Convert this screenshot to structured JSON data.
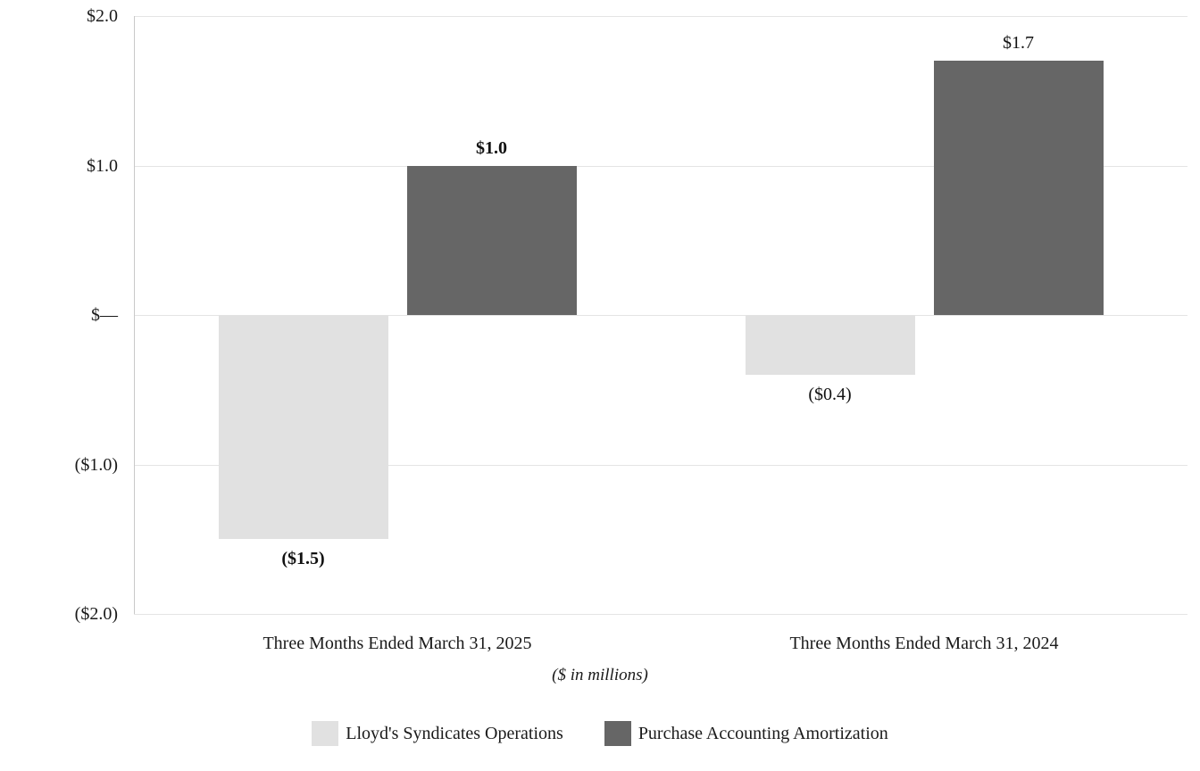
{
  "chart_data": {
    "type": "bar",
    "categories": [
      "Three Months Ended March 31, 2025",
      "Three Months Ended March 31, 2024"
    ],
    "series": [
      {
        "name": "Lloyd's Syndicates Operations",
        "color": "#e1e1e1",
        "values": [
          -1.5,
          -0.4
        ],
        "labels": [
          "($1.5)",
          "($0.4)"
        ]
      },
      {
        "name": "Purchase Accounting Amortization",
        "color": "#666666",
        "values": [
          1.0,
          1.7
        ],
        "labels": [
          "$1.0",
          "$1.7"
        ]
      }
    ],
    "value_label_bold_by_category": [
      true,
      false
    ],
    "y_ticks": [
      {
        "value": 2.0,
        "label": "$2.0"
      },
      {
        "value": 1.0,
        "label": "$1.0"
      },
      {
        "value": 0.0,
        "label": "$—"
      },
      {
        "value": -1.0,
        "label": "($1.0)"
      },
      {
        "value": -2.0,
        "label": "($2.0)"
      }
    ],
    "ylim": [
      -2.0,
      2.0
    ],
    "subtitle": "($ in millions)",
    "grid": true,
    "legend_position": "bottom",
    "colors": {
      "gridline": "#e4e4e4",
      "axis_line": "#c9c9c9"
    }
  }
}
